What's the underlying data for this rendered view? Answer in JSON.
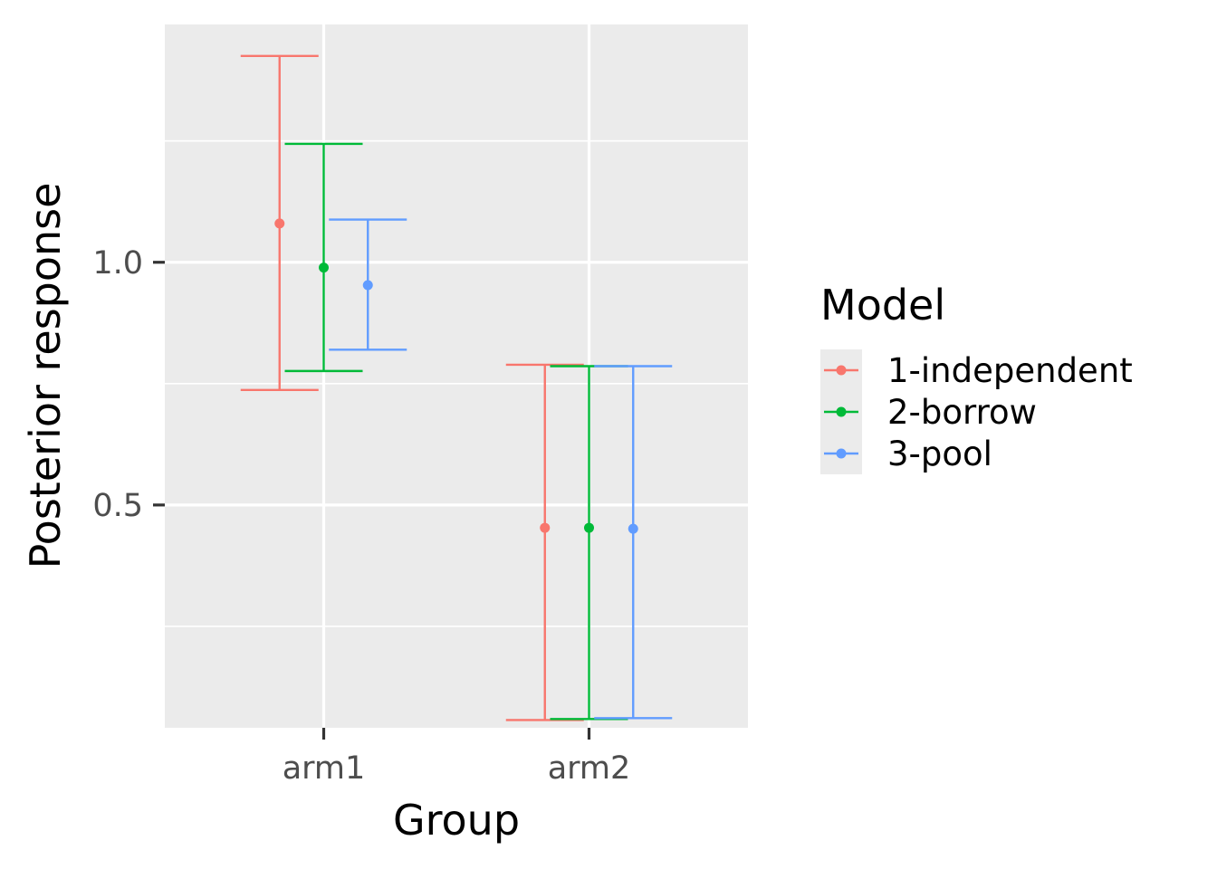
{
  "chart_data": {
    "type": "errorbar",
    "xlabel": "Group",
    "ylabel": "Posterior response",
    "categories": [
      "arm1",
      "arm2"
    ],
    "ylim": [
      0.041,
      1.49
    ],
    "yticks": [
      0.5,
      1.0
    ],
    "ytick_labels": [
      "0.5",
      "1.0"
    ],
    "grid": true,
    "legend": {
      "title": "Model",
      "position": "right"
    },
    "series": [
      {
        "name": "1-independent",
        "color": "#F8766D",
        "points": [
          {
            "x": "arm1",
            "mid": 1.08,
            "low": 0.737,
            "high": 1.425
          },
          {
            "x": "arm2",
            "mid": 0.453,
            "low": 0.057,
            "high": 0.789
          }
        ]
      },
      {
        "name": "2-borrow",
        "color": "#00BA38",
        "points": [
          {
            "x": "arm1",
            "mid": 0.989,
            "low": 0.776,
            "high": 1.244
          },
          {
            "x": "arm2",
            "mid": 0.453,
            "low": 0.059,
            "high": 0.786
          }
        ]
      },
      {
        "name": "3-pool",
        "color": "#619CFF",
        "points": [
          {
            "x": "arm1",
            "mid": 0.953,
            "low": 0.82,
            "high": 1.088
          },
          {
            "x": "arm2",
            "mid": 0.451,
            "low": 0.061,
            "high": 0.786
          }
        ]
      }
    ]
  }
}
